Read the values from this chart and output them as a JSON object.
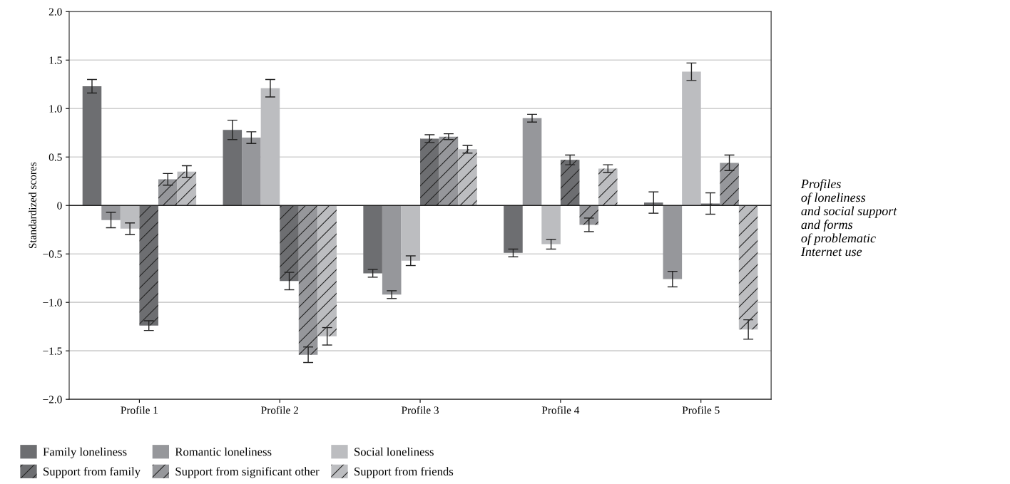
{
  "chart_data": {
    "type": "bar",
    "ylabel": "Standardized scores",
    "categories": [
      "Profile 1",
      "Profile 2",
      "Profile 3",
      "Profile 4",
      "Profile 5"
    ],
    "series": [
      {
        "name": "Family loneliness",
        "color": "#6d6e71",
        "values": [
          1.23,
          0.78,
          -0.7,
          -0.49,
          0.03
        ],
        "errors": [
          0.07,
          0.1,
          0.04,
          0.04,
          0.11
        ]
      },
      {
        "name": "Romantic loneliness",
        "color": "#96979b",
        "values": [
          -0.15,
          0.7,
          -0.92,
          0.9,
          -0.76
        ],
        "errors": [
          0.08,
          0.06,
          0.04,
          0.04,
          0.08
        ]
      },
      {
        "name": "Social loneliness",
        "color": "#bcbdc0",
        "values": [
          -0.24,
          1.21,
          -0.57,
          -0.4,
          1.38
        ],
        "errors": [
          0.06,
          0.09,
          0.05,
          0.05,
          0.09
        ]
      },
      {
        "name": "Support from family",
        "color": "#6d6e71",
        "values": [
          -1.24,
          -0.78,
          0.69,
          0.47,
          0.02
        ],
        "errors": [
          0.05,
          0.09,
          0.04,
          0.05,
          0.11
        ]
      },
      {
        "name": "Support from significant other",
        "color": "#96979b",
        "values": [
          0.27,
          -1.54,
          0.71,
          -0.2,
          0.44
        ],
        "errors": [
          0.06,
          0.08,
          0.03,
          0.07,
          0.08
        ]
      },
      {
        "name": "Support from friends",
        "color": "#bcbdc0",
        "values": [
          0.35,
          -1.35,
          0.58,
          0.38,
          -1.28
        ],
        "errors": [
          0.06,
          0.09,
          0.04,
          0.04,
          0.1
        ]
      }
    ],
    "ylim": [
      -2.0,
      2.0
    ],
    "yticks": [
      {
        "value": -2.0,
        "label": "−2.0"
      },
      {
        "value": -1.5,
        "label": "−1.5"
      },
      {
        "value": -1.0,
        "label": "−1.0"
      },
      {
        "value": -0.5,
        "label": "−0.5"
      },
      0,
      {
        "value": 0.5,
        "label": "0.5"
      },
      {
        "value": 1.0,
        "label": "1.0"
      },
      {
        "value": 1.5,
        "label": "1.5"
      },
      {
        "value": 2.0,
        "label": "2.0"
      }
    ],
    "grid": "y",
    "legend": "bottom",
    "annotations": [
      "Profiles\nof loneliness\nand social support\nand forms\nof problematic\nInternet use"
    ]
  }
}
